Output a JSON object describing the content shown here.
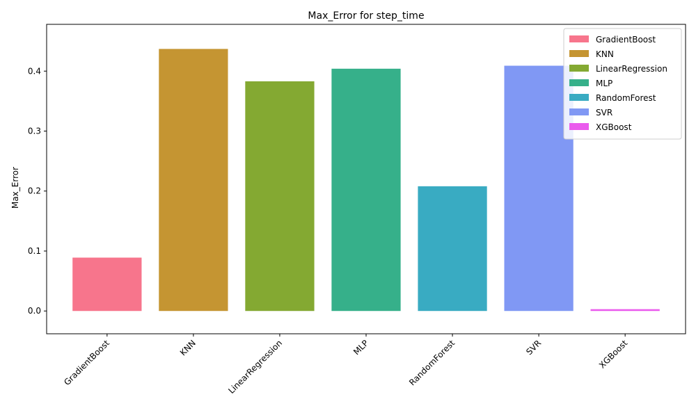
{
  "chart_data": {
    "type": "bar",
    "title": "Max_Error for step_time",
    "xlabel": "",
    "ylabel": "Max_Error",
    "categories": [
      "GradientBoost",
      "KNN",
      "LinearRegression",
      "MLP",
      "RandomForest",
      "SVR",
      "XGBoost"
    ],
    "values": [
      0.089,
      0.437,
      0.383,
      0.404,
      0.208,
      0.409,
      0.003
    ],
    "colors": [
      "#f7758c",
      "#c59532",
      "#84a932",
      "#36b08a",
      "#39abc2",
      "#8098f4",
      "#ea5bed"
    ],
    "ylim": [
      -0.038,
      0.478
    ],
    "yticks": [
      0.0,
      0.1,
      0.2,
      0.3,
      0.4
    ],
    "ytick_labels": [
      "0.0",
      "0.1",
      "0.2",
      "0.3",
      "0.4"
    ],
    "legend": {
      "position": "top-right",
      "entries": [
        "GradientBoost",
        "KNN",
        "LinearRegression",
        "MLP",
        "RandomForest",
        "SVR",
        "XGBoost"
      ]
    },
    "grid": false
  }
}
